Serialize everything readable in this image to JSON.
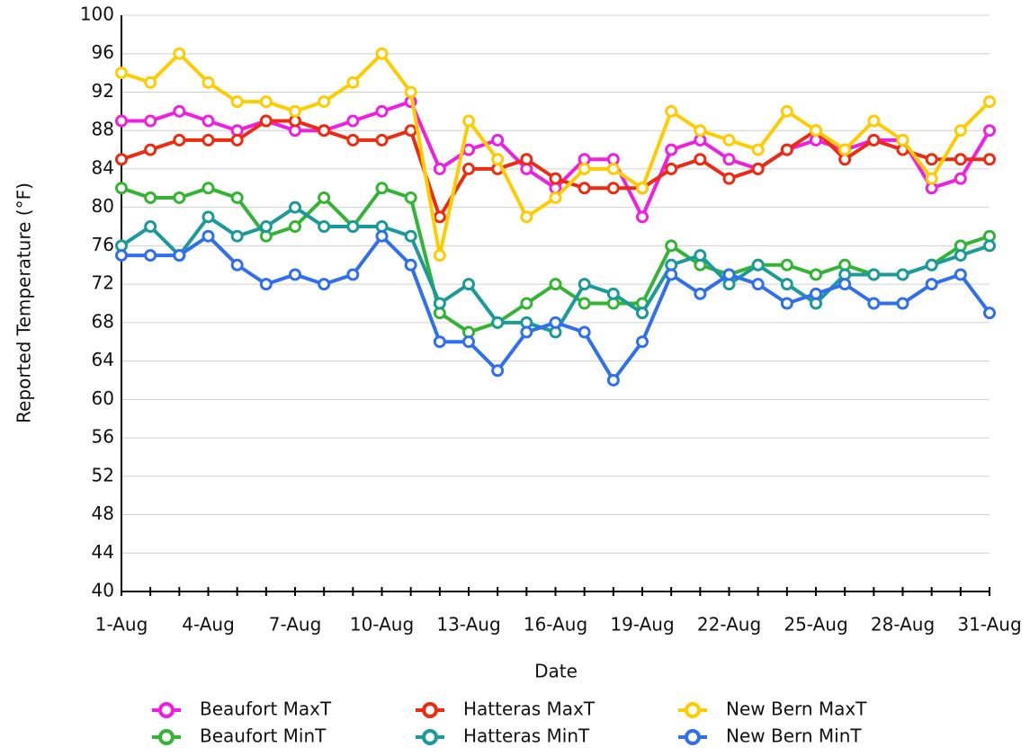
{
  "chart_data": {
    "type": "line",
    "x_label": "Date",
    "y_label": "Reported Temperature (°F)",
    "categories": [
      "1-Aug",
      null,
      null,
      "4-Aug",
      null,
      null,
      "7-Aug",
      null,
      null,
      "10-Aug",
      null,
      null,
      "13-Aug",
      null,
      null,
      "16-Aug",
      null,
      null,
      "19-Aug",
      null,
      null,
      "22-Aug",
      null,
      null,
      "25-Aug",
      null,
      null,
      "28-Aug",
      null,
      null,
      "31-Aug"
    ],
    "ylim": [
      40,
      100
    ],
    "yticks": [
      40,
      44,
      48,
      52,
      56,
      60,
      64,
      68,
      72,
      76,
      80,
      84,
      88,
      92,
      96,
      100
    ],
    "grid": true,
    "legend": "bottom",
    "series": [
      {
        "name": "Beaufort MaxT",
        "color": "#f01ee0",
        "values": [
          89,
          89,
          90,
          89,
          88,
          89,
          88,
          88,
          89,
          90,
          91,
          84,
          86,
          87,
          84,
          82,
          85,
          85,
          79,
          86,
          87,
          85,
          84,
          86,
          87,
          86,
          87,
          87,
          82,
          83,
          88
        ]
      },
      {
        "name": "Hatteras MaxT",
        "color": "#ee2a10",
        "values": [
          85,
          86,
          87,
          87,
          87,
          89,
          89,
          88,
          87,
          87,
          88,
          79,
          84,
          84,
          85,
          83,
          82,
          82,
          82,
          84,
          85,
          83,
          84,
          86,
          88,
          85,
          87,
          86,
          85,
          85,
          85
        ]
      },
      {
        "name": "New Bern MaxT",
        "color": "#ffcc00",
        "values": [
          94,
          93,
          96,
          93,
          91,
          91,
          90,
          91,
          93,
          96,
          92,
          75,
          89,
          85,
          79,
          81,
          84,
          84,
          82,
          90,
          88,
          87,
          86,
          90,
          88,
          86,
          89,
          87,
          83,
          88,
          91
        ]
      },
      {
        "name": "Beaufort MinT",
        "color": "#33b533",
        "values": [
          82,
          81,
          81,
          82,
          81,
          77,
          78,
          81,
          78,
          82,
          81,
          69,
          67,
          68,
          70,
          72,
          70,
          70,
          70,
          76,
          74,
          73,
          74,
          74,
          73,
          74,
          73,
          73,
          74,
          76,
          77
        ]
      },
      {
        "name": "Hatteras MinT",
        "color": "#1a9a9a",
        "values": [
          76,
          78,
          75,
          79,
          77,
          78,
          80,
          78,
          78,
          78,
          77,
          70,
          72,
          68,
          68,
          67,
          72,
          71,
          69,
          74,
          75,
          72,
          74,
          72,
          70,
          73,
          73,
          73,
          74,
          75,
          76
        ]
      },
      {
        "name": "New Bern MinT",
        "color": "#2f6ff0",
        "values": [
          75,
          75,
          75,
          77,
          74,
          72,
          73,
          72,
          73,
          77,
          74,
          66,
          66,
          63,
          67,
          68,
          67,
          62,
          66,
          73,
          71,
          73,
          72,
          70,
          71,
          72,
          70,
          70,
          72,
          73,
          69
        ]
      }
    ]
  }
}
